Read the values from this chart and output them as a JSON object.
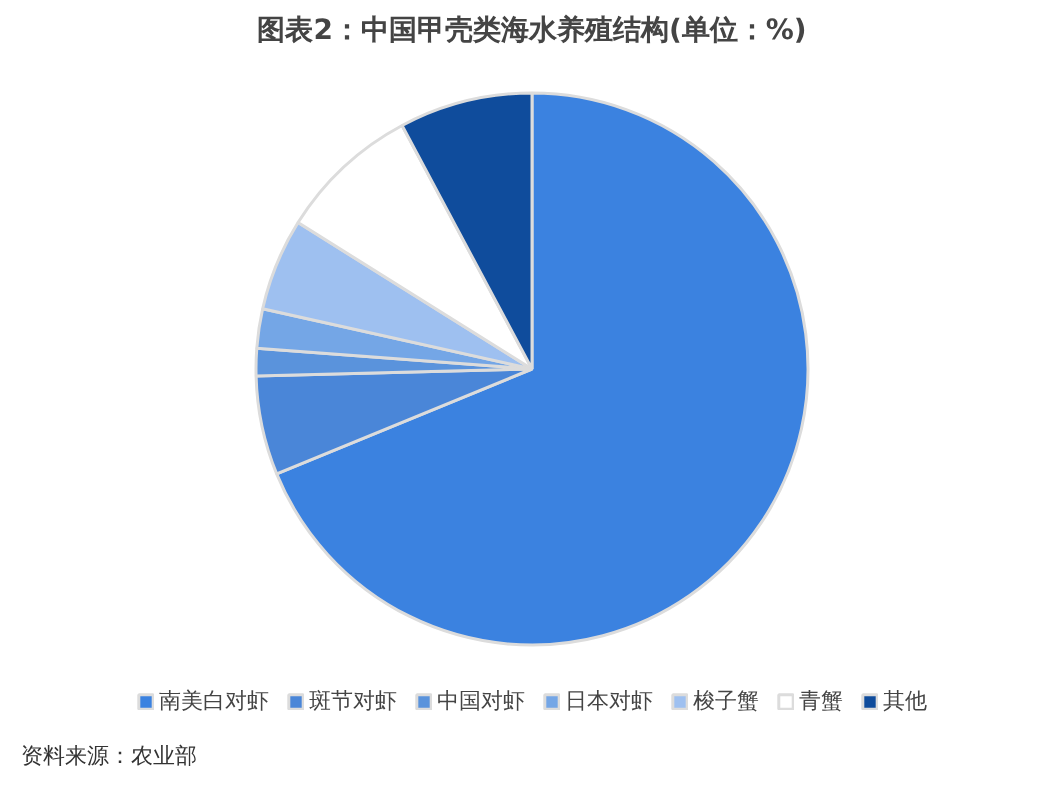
{
  "chart_data": {
    "type": "pie",
    "title": "图表2：中国甲壳类海水养殖结构(单位：%)",
    "categories": [
      "南美白对虾",
      "斑节对虾",
      "中国对虾",
      "日本对虾",
      "梭子蟹",
      "青蟹",
      "其他"
    ],
    "values": [
      68.8,
      5.8,
      1.6,
      2.3,
      5.4,
      8.3,
      7.8
    ],
    "colors": [
      "#3b82e0",
      "#4a86d8",
      "#5a93dc",
      "#74a6e6",
      "#9ec0f0",
      "#ffffff",
      "#0f4c9c"
    ],
    "legend": "bottom",
    "annotations": [
      "资料来源：农业部"
    ]
  }
}
